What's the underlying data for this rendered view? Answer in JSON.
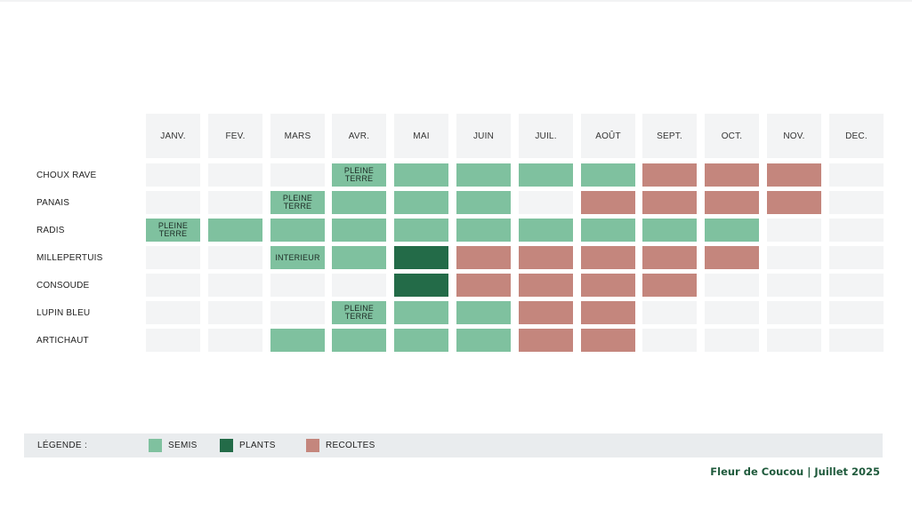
{
  "colors": {
    "empty": "#f3f4f5",
    "semis": "#7fc19f",
    "plants": "#236b48",
    "recoltes": "#c4867d"
  },
  "chart_data": {
    "type": "table",
    "months": [
      "JANV.",
      "FEV.",
      "MARS",
      "AVR.",
      "MAI",
      "JUIN",
      "JUIL.",
      "AOÛT",
      "SEPT.",
      "OCT.",
      "NOV.",
      "DEC."
    ],
    "rows": [
      {
        "name": "CHOUX RAVE",
        "cells": [
          "",
          "",
          "",
          "semis",
          "semis",
          "semis",
          "semis",
          "semis",
          "recoltes",
          "recoltes",
          "recoltes",
          ""
        ],
        "notes": {
          "3": "PLEINE TERRE"
        }
      },
      {
        "name": "PANAIS",
        "cells": [
          "",
          "",
          "semis",
          "semis",
          "semis",
          "semis",
          "",
          "recoltes",
          "recoltes",
          "recoltes",
          "recoltes",
          ""
        ],
        "notes": {
          "2": "PLEINE TERRE"
        }
      },
      {
        "name": "RADIS",
        "cells": [
          "semis",
          "semis",
          "semis",
          "semis",
          "semis",
          "semis",
          "semis",
          "semis",
          "semis",
          "semis",
          "",
          ""
        ],
        "notes": {
          "0": "PLEINE TERRE"
        }
      },
      {
        "name": "MILLEPERTUIS",
        "cells": [
          "",
          "",
          "semis",
          "semis",
          "plants",
          "recoltes",
          "recoltes",
          "recoltes",
          "recoltes",
          "recoltes",
          "",
          ""
        ],
        "notes": {
          "2": "INTERIEUR"
        }
      },
      {
        "name": "CONSOUDE",
        "cells": [
          "",
          "",
          "",
          "",
          "plants",
          "recoltes",
          "recoltes",
          "recoltes",
          "recoltes",
          "",
          "",
          ""
        ],
        "notes": {}
      },
      {
        "name": "LUPIN BLEU",
        "cells": [
          "",
          "",
          "",
          "semis",
          "semis",
          "semis",
          "recoltes",
          "recoltes",
          "",
          "",
          "",
          ""
        ],
        "notes": {
          "3": "PLEINE TERRE"
        }
      },
      {
        "name": "ARTICHAUT",
        "cells": [
          "",
          "",
          "semis",
          "semis",
          "semis",
          "semis",
          "recoltes",
          "recoltes",
          "",
          "",
          "",
          ""
        ],
        "notes": {}
      }
    ]
  },
  "legend": {
    "title": "LÉGENDE  :",
    "items": [
      {
        "key": "semis",
        "label": "SEMIS"
      },
      {
        "key": "plants",
        "label": "PLANTS"
      },
      {
        "key": "recoltes",
        "label": "RECOLTES"
      }
    ]
  },
  "footer": {
    "credit": "Fleur de Coucou | Juillet 2025"
  }
}
